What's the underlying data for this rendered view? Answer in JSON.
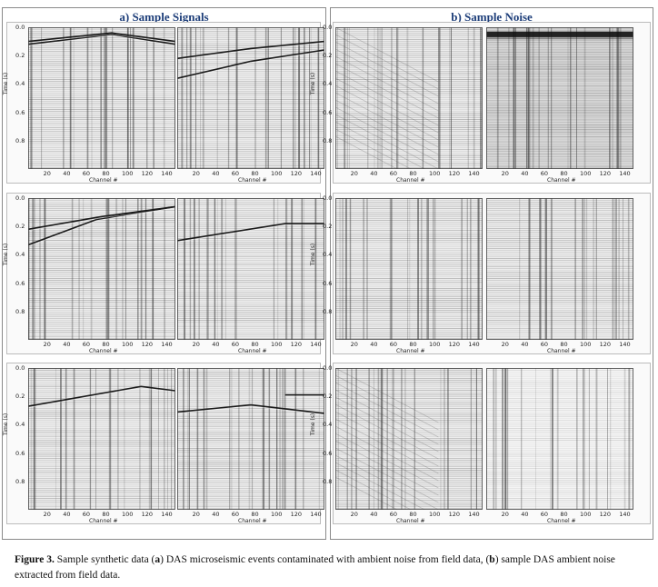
{
  "section_a": {
    "title": "a) Sample Signals"
  },
  "section_b": {
    "title": "b) Sample Noise"
  },
  "axes": {
    "x_ticks": [
      "20",
      "40",
      "60",
      "80",
      "100",
      "120",
      "140"
    ],
    "y_ticks": [
      "0.0",
      "0.2",
      "0.4",
      "0.6",
      "0.8"
    ],
    "xlabel": "Channel #",
    "ylabel": "Time (s)"
  },
  "caption": {
    "label": "Figure 3.",
    "text_1": " Sample synthetic data (",
    "a": "a",
    "text_2": ") DAS microseismic events contaminated with ambient noise from field data, (",
    "b": "b",
    "text_3": ") sample DAS ambient noise extracted from field data."
  },
  "colors": {
    "title": "#1f3f7a",
    "trace": "#555555",
    "event": "#1a1a1a",
    "border": "#8a8a8a"
  },
  "panels": [
    {
      "id": "a-1-1",
      "kind": "signal",
      "events": [
        [
          [
            0,
            0.12
          ],
          [
            85,
            0.05
          ],
          [
            150,
            0.12
          ]
        ],
        [
          [
            0,
            0.1
          ],
          [
            85,
            0.04
          ],
          [
            150,
            0.1
          ]
        ]
      ]
    },
    {
      "id": "a-1-2",
      "kind": "signal",
      "events": [
        [
          [
            0,
            0.36
          ],
          [
            75,
            0.24
          ],
          [
            150,
            0.16
          ]
        ],
        [
          [
            0,
            0.22
          ],
          [
            75,
            0.15
          ],
          [
            150,
            0.1
          ]
        ]
      ]
    },
    {
      "id": "b-1-1",
      "kind": "noise",
      "variant": "diagonal"
    },
    {
      "id": "b-1-2",
      "kind": "noise",
      "variant": "band"
    },
    {
      "id": "a-2-1",
      "kind": "signal",
      "events": [
        [
          [
            0,
            0.33
          ],
          [
            70,
            0.15
          ],
          [
            150,
            0.06
          ]
        ],
        [
          [
            0,
            0.22
          ],
          [
            75,
            0.13
          ],
          [
            150,
            0.06
          ]
        ]
      ]
    },
    {
      "id": "a-2-2",
      "kind": "signal",
      "events": [
        [
          [
            0,
            0.3
          ],
          [
            110,
            0.18
          ],
          [
            150,
            0.18
          ]
        ]
      ]
    },
    {
      "id": "b-2-1",
      "kind": "noise",
      "variant": "plain"
    },
    {
      "id": "b-2-2",
      "kind": "noise",
      "variant": "plain"
    },
    {
      "id": "a-3-1",
      "kind": "signal",
      "events": [
        [
          [
            0,
            0.27
          ],
          [
            115,
            0.13
          ],
          [
            150,
            0.16
          ]
        ]
      ]
    },
    {
      "id": "a-3-2",
      "kind": "signal",
      "events": [
        [
          [
            0,
            0.31
          ],
          [
            75,
            0.26
          ],
          [
            150,
            0.32
          ]
        ],
        [
          [
            110,
            0.19
          ],
          [
            150,
            0.19
          ]
        ]
      ]
    },
    {
      "id": "b-3-1",
      "kind": "noise",
      "variant": "diagonal"
    },
    {
      "id": "b-3-2",
      "kind": "noise",
      "variant": "light"
    }
  ]
}
